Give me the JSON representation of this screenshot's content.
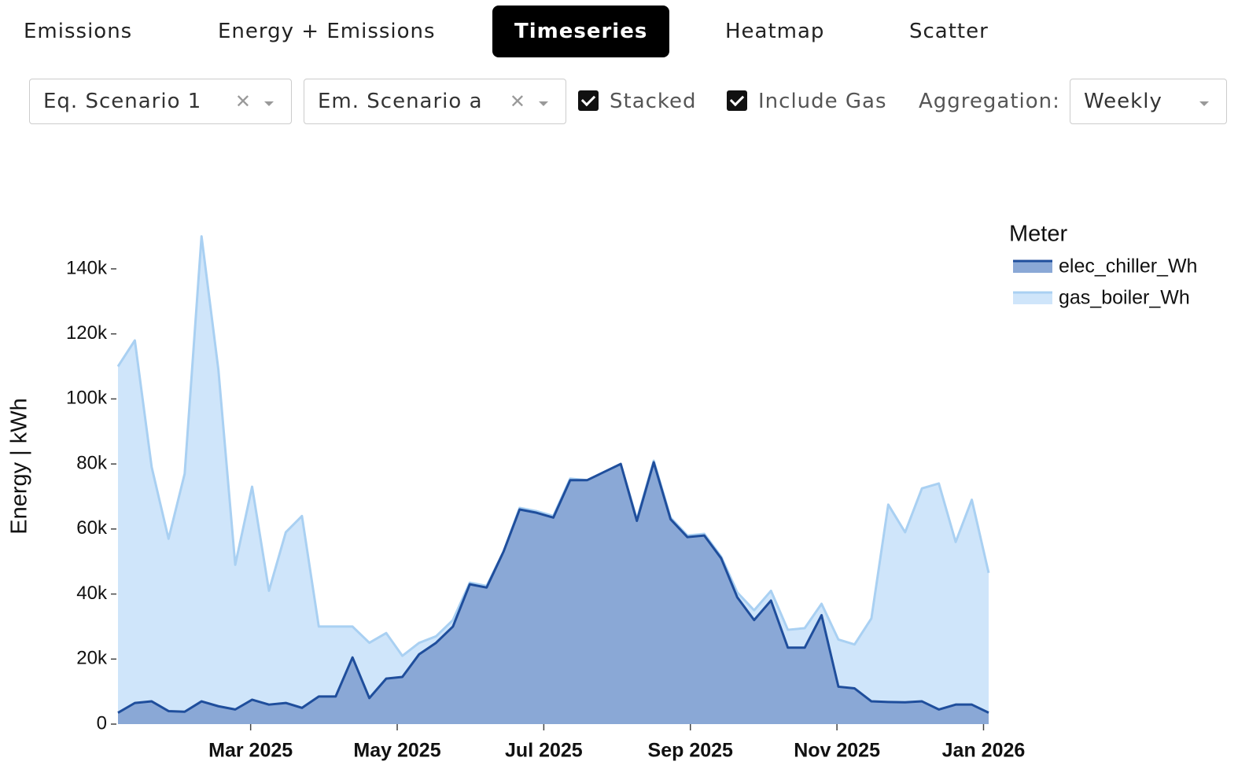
{
  "tabs": [
    {
      "label": "Emissions",
      "active": false
    },
    {
      "label": "Energy + Emissions",
      "active": false
    },
    {
      "label": "Timeseries",
      "active": true
    },
    {
      "label": "Heatmap",
      "active": false
    },
    {
      "label": "Scatter",
      "active": false
    }
  ],
  "filters": {
    "equipment_scenario": "Eq. Scenario 1",
    "emissions_scenario": "Em. Scenario a",
    "stacked": {
      "label": "Stacked",
      "checked": true
    },
    "include_gas": {
      "label": "Include Gas",
      "checked": true
    },
    "aggregation": {
      "label": "Aggregation:",
      "value": "Weekly"
    }
  },
  "chart_data": {
    "type": "area",
    "stacked": true,
    "y_label": "Energy | kWh",
    "legend_title": "Meter",
    "x": [
      0.19,
      0.42,
      0.65,
      0.88,
      1.1,
      1.33,
      1.56,
      1.79,
      2.02,
      2.25,
      2.48,
      2.7,
      2.93,
      3.16,
      3.39,
      3.62,
      3.85,
      4.07,
      4.3,
      4.53,
      4.76,
      4.99,
      5.22,
      5.45,
      5.67,
      5.9,
      6.13,
      6.36,
      6.59,
      6.82,
      7.05,
      7.27,
      7.5,
      7.73,
      7.96,
      8.19,
      8.42,
      8.64,
      8.87,
      9.1,
      9.33,
      9.56,
      9.79,
      10.02,
      10.24,
      10.47,
      10.7,
      10.93,
      11.16,
      11.39,
      11.62,
      11.84,
      12.07
    ],
    "xlim": [
      0.19,
      12.07
    ],
    "xticks": [
      {
        "value": 2,
        "label": "Mar 2025"
      },
      {
        "value": 4,
        "label": "May 2025"
      },
      {
        "value": 6,
        "label": "Jul 2025"
      },
      {
        "value": 8,
        "label": "Sep 2025"
      },
      {
        "value": 10,
        "label": "Nov 2025"
      },
      {
        "value": 12,
        "label": "Jan 2026"
      }
    ],
    "ylim": [
      0,
      150000
    ],
    "yticks": [
      0,
      {
        "value": 20000,
        "label": "20k"
      },
      {
        "value": 40000,
        "label": "40k"
      },
      {
        "value": 60000,
        "label": "60k"
      },
      {
        "value": 80000,
        "label": "80k"
      },
      {
        "value": 100000,
        "label": "100k"
      },
      {
        "value": 120000,
        "label": "120k"
      },
      {
        "value": 140000,
        "label": "140k"
      }
    ],
    "series": [
      {
        "name": "elec_chiller_Wh",
        "color": "#1f4e9c",
        "fill": "#8aa8d6",
        "values": [
          3500,
          6500,
          7000,
          4000,
          3800,
          7000,
          5500,
          4500,
          7500,
          6000,
          6500,
          5000,
          8500,
          8500,
          20500,
          8000,
          14000,
          14500,
          21500,
          25000,
          30000,
          43000,
          42000,
          53000,
          66000,
          65000,
          63500,
          75000,
          75000,
          77500,
          80000,
          62500,
          80500,
          63000,
          57500,
          58000,
          51000,
          39000,
          32000,
          38000,
          23500,
          23500,
          33500,
          11500,
          11000,
          7000,
          6800,
          6700,
          7000,
          4500,
          6000,
          6000,
          3500
        ]
      },
      {
        "name": "gas_boiler_Wh",
        "color": "#a9d0f2",
        "fill": "#cfe5fa",
        "values": [
          106500,
          111500,
          72000,
          53000,
          73200,
          143000,
          103500,
          44500,
          65500,
          35000,
          52500,
          59000,
          21500,
          21500,
          9500,
          17000,
          14000,
          6500,
          3500,
          2000,
          2000,
          500,
          500,
          0,
          500,
          500,
          500,
          500,
          0,
          0,
          0,
          500,
          500,
          500,
          500,
          500,
          500,
          1500,
          3000,
          3000,
          5500,
          6000,
          3500,
          14500,
          13500,
          25500,
          60700,
          52300,
          65500,
          69500,
          50000,
          63000,
          43000
        ]
      }
    ]
  }
}
